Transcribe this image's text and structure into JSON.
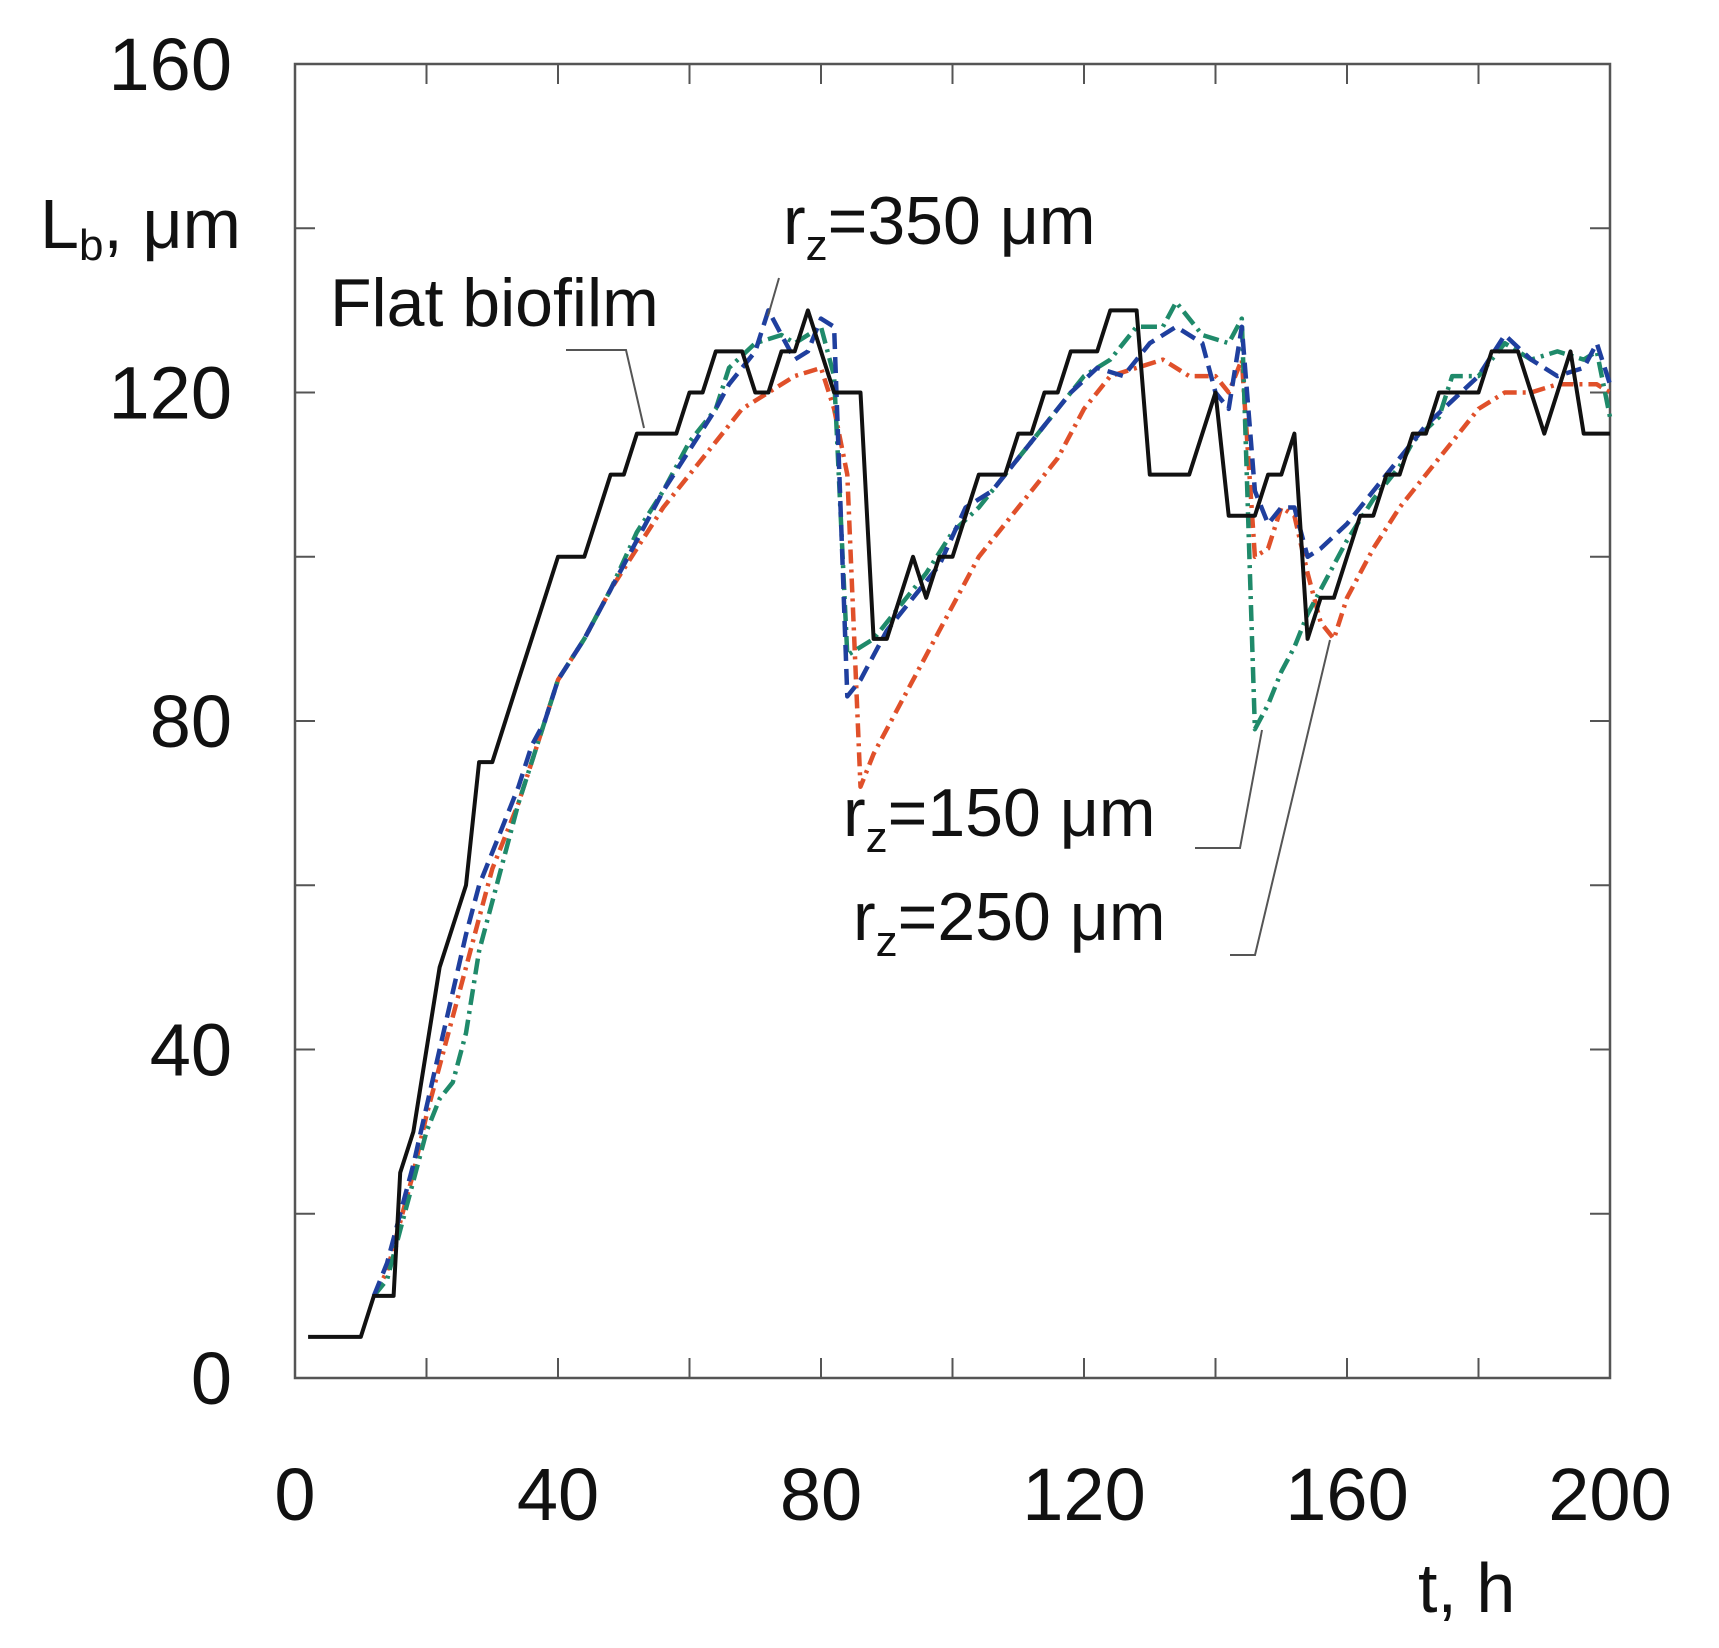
{
  "chart_data": {
    "type": "line",
    "title": "",
    "xlabel": "t, h",
    "ylabel": {
      "main": "L",
      "sub": "b",
      "unit": ", μm"
    },
    "xlim": [
      0,
      200
    ],
    "ylim": [
      0,
      160
    ],
    "x_ticks": [
      0,
      40,
      80,
      120,
      160,
      200
    ],
    "y_ticks": [
      0,
      40,
      80,
      120,
      160
    ],
    "x_minor_step": 20,
    "y_minor_step": 20,
    "grid": false,
    "series": [
      {
        "name": "Flat biofilm",
        "color": "#111111",
        "dash": "solid",
        "points": [
          [
            2,
            5
          ],
          [
            10,
            5
          ],
          [
            12,
            10
          ],
          [
            15,
            10
          ],
          [
            16,
            25
          ],
          [
            18,
            30
          ],
          [
            20,
            40
          ],
          [
            22,
            50
          ],
          [
            24,
            55
          ],
          [
            26,
            60
          ],
          [
            28,
            75
          ],
          [
            30,
            75
          ],
          [
            32,
            80
          ],
          [
            34,
            85
          ],
          [
            36,
            90
          ],
          [
            38,
            95
          ],
          [
            40,
            100
          ],
          [
            44,
            100
          ],
          [
            46,
            105
          ],
          [
            48,
            110
          ],
          [
            50,
            110
          ],
          [
            52,
            115
          ],
          [
            58,
            115
          ],
          [
            60,
            120
          ],
          [
            62,
            120
          ],
          [
            64,
            125
          ],
          [
            68,
            125
          ],
          [
            70,
            120
          ],
          [
            72,
            120
          ],
          [
            74,
            125
          ],
          [
            76,
            125
          ],
          [
            78,
            130
          ],
          [
            80,
            125
          ],
          [
            82,
            120
          ],
          [
            86,
            120
          ],
          [
            88,
            90
          ],
          [
            90,
            90
          ],
          [
            92,
            95
          ],
          [
            94,
            100
          ],
          [
            96,
            95
          ],
          [
            98,
            100
          ],
          [
            100,
            100
          ],
          [
            102,
            105
          ],
          [
            104,
            110
          ],
          [
            108,
            110
          ],
          [
            110,
            115
          ],
          [
            112,
            115
          ],
          [
            114,
            120
          ],
          [
            116,
            120
          ],
          [
            118,
            125
          ],
          [
            122,
            125
          ],
          [
            124,
            130
          ],
          [
            128,
            130
          ],
          [
            130,
            110
          ],
          [
            136,
            110
          ],
          [
            140,
            120
          ],
          [
            142,
            105
          ],
          [
            146,
            105
          ],
          [
            148,
            110
          ],
          [
            150,
            110
          ],
          [
            152,
            115
          ],
          [
            154,
            90
          ],
          [
            156,
            95
          ],
          [
            158,
            95
          ],
          [
            160,
            100
          ],
          [
            162,
            105
          ],
          [
            164,
            105
          ],
          [
            166,
            110
          ],
          [
            168,
            110
          ],
          [
            170,
            115
          ],
          [
            172,
            115
          ],
          [
            174,
            120
          ],
          [
            180,
            120
          ],
          [
            182,
            125
          ],
          [
            186,
            125
          ],
          [
            188,
            120
          ],
          [
            190,
            115
          ],
          [
            194,
            125
          ],
          [
            196,
            115
          ],
          [
            200,
            115
          ]
        ]
      },
      {
        "name": "r_z=350 μm",
        "color": "#1f3f9e",
        "dash": "16,8",
        "points": [
          [
            12,
            10
          ],
          [
            14,
            14
          ],
          [
            16,
            20
          ],
          [
            18,
            26
          ],
          [
            20,
            33
          ],
          [
            22,
            40
          ],
          [
            24,
            47
          ],
          [
            26,
            54
          ],
          [
            28,
            60
          ],
          [
            30,
            64
          ],
          [
            32,
            68
          ],
          [
            34,
            72
          ],
          [
            36,
            77
          ],
          [
            38,
            80
          ],
          [
            40,
            85
          ],
          [
            44,
            90
          ],
          [
            48,
            96
          ],
          [
            52,
            102
          ],
          [
            56,
            108
          ],
          [
            60,
            113
          ],
          [
            64,
            118
          ],
          [
            66,
            121
          ],
          [
            70,
            125
          ],
          [
            72,
            130
          ],
          [
            74,
            127
          ],
          [
            76,
            124
          ],
          [
            78,
            125
          ],
          [
            80,
            129
          ],
          [
            82,
            128
          ],
          [
            84,
            83
          ],
          [
            86,
            85
          ],
          [
            88,
            88
          ],
          [
            90,
            91
          ],
          [
            94,
            95
          ],
          [
            98,
            99
          ],
          [
            102,
            106
          ],
          [
            106,
            108
          ],
          [
            110,
            112
          ],
          [
            114,
            116
          ],
          [
            118,
            120
          ],
          [
            122,
            123
          ],
          [
            126,
            122
          ],
          [
            130,
            126
          ],
          [
            134,
            128
          ],
          [
            138,
            126
          ],
          [
            140,
            120
          ],
          [
            142,
            118
          ],
          [
            144,
            128
          ],
          [
            146,
            108
          ],
          [
            148,
            104
          ],
          [
            150,
            106
          ],
          [
            152,
            106
          ],
          [
            154,
            100
          ],
          [
            156,
            101
          ],
          [
            160,
            104
          ],
          [
            164,
            108
          ],
          [
            168,
            112
          ],
          [
            172,
            116
          ],
          [
            176,
            119
          ],
          [
            180,
            122
          ],
          [
            184,
            127
          ],
          [
            188,
            124
          ],
          [
            192,
            122
          ],
          [
            196,
            123
          ],
          [
            198,
            126
          ],
          [
            200,
            121
          ]
        ]
      },
      {
        "name": "r_z=150 μm",
        "color": "#1f8a6a",
        "dash": "16,6,3,6",
        "points": [
          [
            12,
            10
          ],
          [
            14,
            12
          ],
          [
            16,
            18
          ],
          [
            18,
            24
          ],
          [
            20,
            30
          ],
          [
            22,
            34
          ],
          [
            24,
            36
          ],
          [
            26,
            42
          ],
          [
            28,
            52
          ],
          [
            30,
            58
          ],
          [
            32,
            64
          ],
          [
            34,
            70
          ],
          [
            36,
            75
          ],
          [
            38,
            80
          ],
          [
            40,
            85
          ],
          [
            44,
            90
          ],
          [
            48,
            96
          ],
          [
            52,
            103
          ],
          [
            56,
            108
          ],
          [
            60,
            114
          ],
          [
            64,
            118
          ],
          [
            66,
            123
          ],
          [
            70,
            126
          ],
          [
            74,
            127
          ],
          [
            76,
            126
          ],
          [
            80,
            128
          ],
          [
            82,
            122
          ],
          [
            84,
            88
          ],
          [
            88,
            90
          ],
          [
            92,
            94
          ],
          [
            96,
            98
          ],
          [
            100,
            103
          ],
          [
            104,
            106
          ],
          [
            108,
            110
          ],
          [
            112,
            114
          ],
          [
            116,
            118
          ],
          [
            120,
            122
          ],
          [
            124,
            124
          ],
          [
            128,
            128
          ],
          [
            132,
            128
          ],
          [
            134,
            131
          ],
          [
            138,
            127
          ],
          [
            142,
            126
          ],
          [
            144,
            129
          ],
          [
            146,
            79
          ],
          [
            148,
            82
          ],
          [
            150,
            86
          ],
          [
            152,
            89
          ],
          [
            154,
            93
          ],
          [
            156,
            96
          ],
          [
            160,
            102
          ],
          [
            164,
            107
          ],
          [
            168,
            111
          ],
          [
            170,
            114
          ],
          [
            174,
            117
          ],
          [
            176,
            122
          ],
          [
            180,
            122
          ],
          [
            184,
            126
          ],
          [
            188,
            124
          ],
          [
            192,
            125
          ],
          [
            196,
            124
          ],
          [
            198,
            125
          ],
          [
            200,
            117
          ]
        ]
      },
      {
        "name": "r_z=250 μm",
        "color": "#e0502a",
        "dash": "14,6,3,6",
        "points": [
          [
            12,
            10
          ],
          [
            14,
            13
          ],
          [
            16,
            19
          ],
          [
            18,
            25
          ],
          [
            20,
            32
          ],
          [
            22,
            38
          ],
          [
            24,
            44
          ],
          [
            26,
            50
          ],
          [
            28,
            56
          ],
          [
            30,
            62
          ],
          [
            32,
            66
          ],
          [
            34,
            70
          ],
          [
            36,
            75
          ],
          [
            38,
            80
          ],
          [
            40,
            85
          ],
          [
            44,
            90
          ],
          [
            48,
            96
          ],
          [
            52,
            101
          ],
          [
            56,
            106
          ],
          [
            60,
            110
          ],
          [
            64,
            114
          ],
          [
            68,
            118
          ],
          [
            72,
            120
          ],
          [
            76,
            122
          ],
          [
            80,
            123
          ],
          [
            82,
            118
          ],
          [
            84,
            110
          ],
          [
            86,
            72
          ],
          [
            88,
            76
          ],
          [
            92,
            82
          ],
          [
            96,
            88
          ],
          [
            100,
            94
          ],
          [
            104,
            100
          ],
          [
            108,
            104
          ],
          [
            112,
            108
          ],
          [
            116,
            112
          ],
          [
            120,
            118
          ],
          [
            124,
            122
          ],
          [
            128,
            123
          ],
          [
            132,
            124
          ],
          [
            136,
            122
          ],
          [
            140,
            122
          ],
          [
            142,
            120
          ],
          [
            144,
            124
          ],
          [
            146,
            100
          ],
          [
            148,
            101
          ],
          [
            150,
            106
          ],
          [
            152,
            105
          ],
          [
            154,
            98
          ],
          [
            156,
            92
          ],
          [
            158,
            90
          ],
          [
            160,
            95
          ],
          [
            164,
            101
          ],
          [
            168,
            106
          ],
          [
            172,
            110
          ],
          [
            176,
            114
          ],
          [
            180,
            118
          ],
          [
            184,
            120
          ],
          [
            188,
            120
          ],
          [
            192,
            121
          ],
          [
            196,
            121
          ],
          [
            198,
            121
          ],
          [
            200,
            120
          ]
        ]
      }
    ],
    "annotations": [
      {
        "id": "flat",
        "main": "Flat biofilm",
        "sub": "",
        "unit": ""
      },
      {
        "id": "rz350",
        "main": "r",
        "sub": "z",
        "unit": "=350 μm"
      },
      {
        "id": "rz150",
        "main": "r",
        "sub": "z",
        "unit": "=150 μm"
      },
      {
        "id": "rz250",
        "main": "r",
        "sub": "z",
        "unit": "=250 μm"
      }
    ]
  }
}
